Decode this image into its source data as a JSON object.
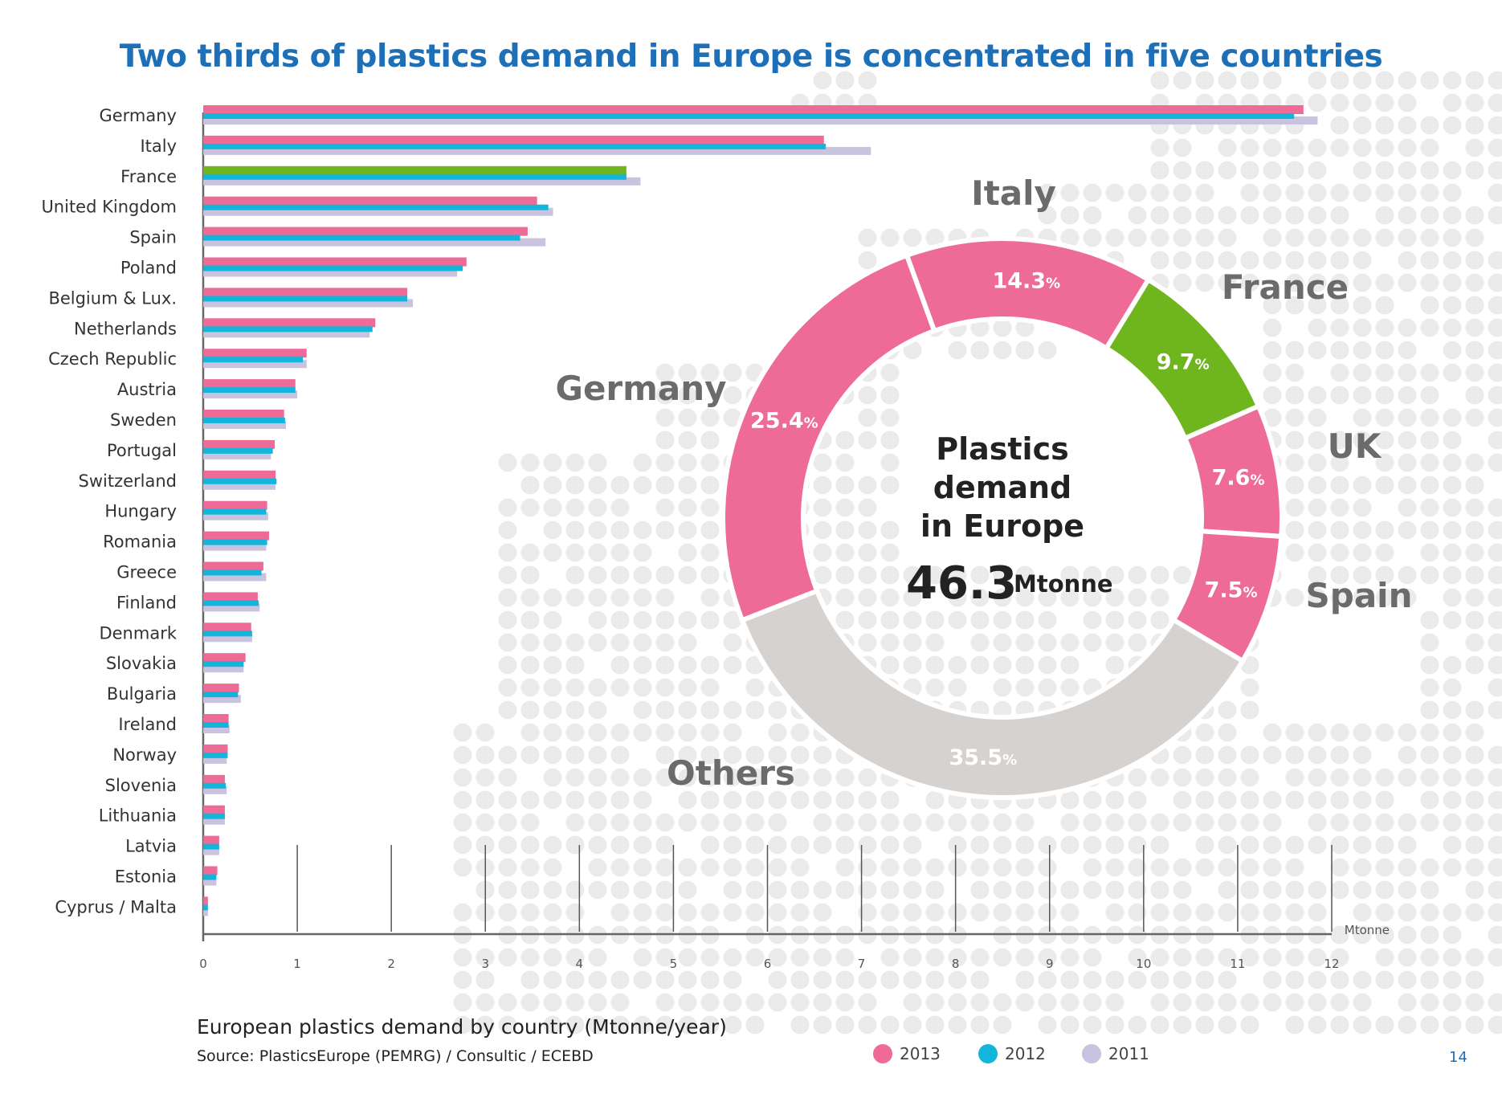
{
  "title": "Two thirds of plastics demand in Europe is concentrated in five countries",
  "caption": "European plastics demand by country (Mtonne/year)",
  "source": "Source: PlasticsEurope (PEMRG) / Consultic / ECEBD",
  "page_number": "14",
  "colors": {
    "2013": "#ee6b98",
    "2012": "#14b5da",
    "2011": "#c9c3e0",
    "highlight_2013": "#6fb51e",
    "others": "#d6d2cf",
    "donut_label": "#6b6b6b",
    "axis": "#666666",
    "title": "#1d6fb8",
    "dots": "#ebebeb"
  },
  "chart_data": [
    {
      "type": "bar",
      "orientation": "horizontal",
      "categories": [
        "Germany",
        "Italy",
        "France",
        "United Kingdom",
        "Spain",
        "Poland",
        "Belgium & Lux.",
        "Netherlands",
        "Czech Republic",
        "Austria",
        "Sweden",
        "Portugal",
        "Switzerland",
        "Hungary",
        "Romania",
        "Greece",
        "Finland",
        "Denmark",
        "Slovakia",
        "Bulgaria",
        "Ireland",
        "Norway",
        "Slovenia",
        "Lithuania",
        "Latvia",
        "Estonia",
        "Cyprus / Malta"
      ],
      "series": [
        {
          "name": "2013",
          "values": [
            11.7,
            6.6,
            4.5,
            3.55,
            3.45,
            2.8,
            2.17,
            1.83,
            1.1,
            0.98,
            0.86,
            0.76,
            0.77,
            0.68,
            0.7,
            0.64,
            0.58,
            0.51,
            0.45,
            0.38,
            0.27,
            0.26,
            0.23,
            0.23,
            0.17,
            0.15,
            0.05
          ]
        },
        {
          "name": "2012",
          "values": [
            11.6,
            6.62,
            4.5,
            3.67,
            3.37,
            2.76,
            2.17,
            1.8,
            1.06,
            0.98,
            0.87,
            0.74,
            0.78,
            0.67,
            0.68,
            0.62,
            0.59,
            0.52,
            0.43,
            0.37,
            0.27,
            0.26,
            0.24,
            0.23,
            0.17,
            0.14,
            0.05
          ]
        },
        {
          "name": "2011",
          "values": [
            11.85,
            7.1,
            4.65,
            3.72,
            3.64,
            2.7,
            2.23,
            1.77,
            1.1,
            1.0,
            0.88,
            0.72,
            0.77,
            0.69,
            0.67,
            0.67,
            0.6,
            0.52,
            0.43,
            0.4,
            0.28,
            0.25,
            0.25,
            0.23,
            0.17,
            0.14,
            0.05
          ]
        }
      ],
      "highlight_category": "France",
      "xlim": [
        0,
        12
      ],
      "xticks": [
        "0",
        "1",
        "2",
        "3",
        "4",
        "5",
        "6",
        "7",
        "8",
        "9",
        "10",
        "11",
        "12"
      ],
      "xunit": "Mtonne",
      "grid": "vertical lines",
      "legend": [
        "2013",
        "2012",
        "2011"
      ]
    },
    {
      "type": "pie",
      "style": "donut",
      "center_text": [
        "Plastics",
        "demand",
        "in Europe"
      ],
      "center_value": "46.3",
      "center_unit": "Mtonne",
      "slices": [
        {
          "label": "Italy",
          "value": 14.3,
          "display": "14.3",
          "pct": "%"
        },
        {
          "label": "France",
          "value": 9.7,
          "display": "9.7",
          "pct": "%"
        },
        {
          "label": "UK",
          "value": 7.6,
          "display": "7.6",
          "pct": "%"
        },
        {
          "label": "Spain",
          "value": 7.5,
          "display": "7.5",
          "pct": "%"
        },
        {
          "label": "Others",
          "value": 35.5,
          "display": "35.5",
          "pct": "%"
        },
        {
          "label": "Germany",
          "value": 25.4,
          "display": "25.4",
          "pct": "%"
        }
      ]
    }
  ]
}
